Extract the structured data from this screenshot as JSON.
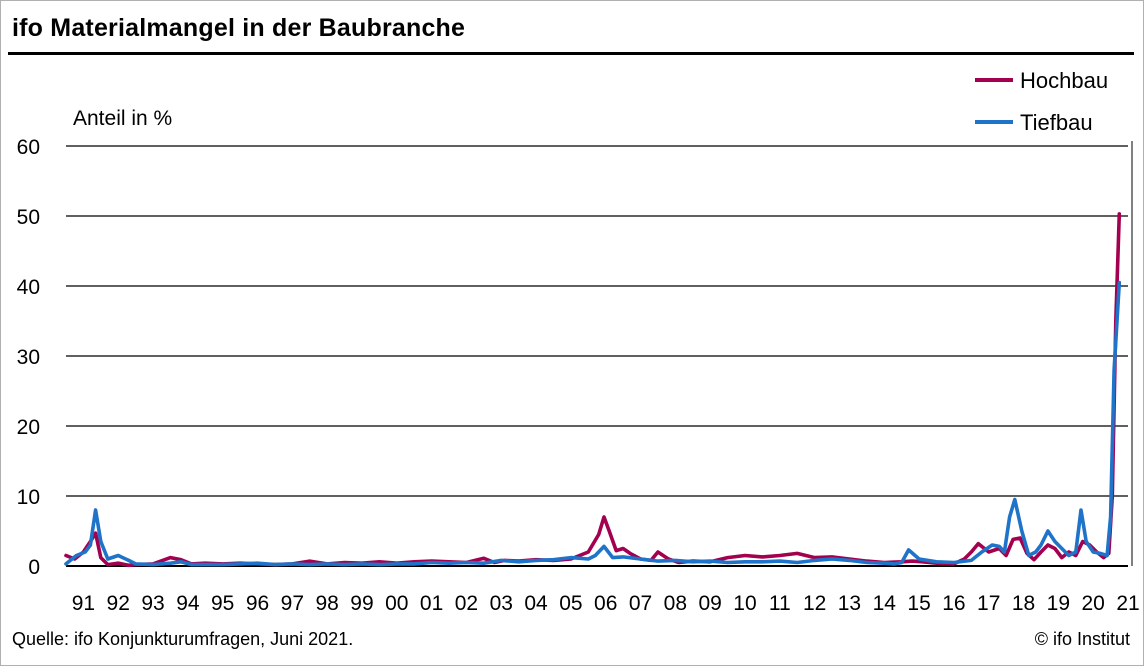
{
  "header": {
    "title": "ifo Materialmangel in der Baubranche"
  },
  "footer": {
    "source": "Quelle: ifo Konjunkturumfragen, Juni 2021.",
    "copyright": "© ifo Institut"
  },
  "chart_data": {
    "type": "line",
    "title": "ifo Materialmangel in der Baubranche",
    "ylabel": "Anteil in %",
    "xlabel": "",
    "ylim": [
      0,
      60
    ],
    "xlim": [
      1991.0,
      2021.5
    ],
    "yticks": [
      0,
      10,
      20,
      30,
      40,
      50,
      60
    ],
    "xtick_labels": [
      "91",
      "92",
      "93",
      "94",
      "95",
      "96",
      "97",
      "98",
      "99",
      "00",
      "01",
      "02",
      "03",
      "04",
      "05",
      "06",
      "07",
      "08",
      "09",
      "10",
      "11",
      "12",
      "13",
      "14",
      "15",
      "16",
      "17",
      "18",
      "19",
      "20",
      "21"
    ],
    "grid": true,
    "legend_position": "top-right",
    "series": [
      {
        "name": "Hochbau",
        "color": "#a3004f",
        "x": [
          1991.0,
          1991.25,
          1991.5,
          1991.7,
          1991.85,
          1992.0,
          1992.2,
          1992.5,
          1992.8,
          1993.0,
          1993.5,
          1994.0,
          1994.3,
          1994.6,
          1995.0,
          1995.5,
          1996.0,
          1996.5,
          1997.0,
          1997.5,
          1998.0,
          1998.5,
          1999.0,
          1999.5,
          2000.0,
          2000.5,
          2001.0,
          2001.5,
          2002.0,
          2002.5,
          2003.0,
          2003.3,
          2003.6,
          2004.0,
          2004.5,
          2005.0,
          2005.5,
          2006.0,
          2006.3,
          2006.45,
          2006.6,
          2006.8,
          2007.0,
          2007.2,
          2007.5,
          2007.8,
          2008.0,
          2008.3,
          2008.6,
          2009.0,
          2009.5,
          2010.0,
          2010.5,
          2011.0,
          2011.5,
          2012.0,
          2012.5,
          2013.0,
          2013.5,
          2014.0,
          2014.5,
          2015.0,
          2015.3,
          2015.6,
          2016.0,
          2016.5,
          2016.8,
          2017.0,
          2017.2,
          2017.5,
          2017.8,
          2018.0,
          2018.2,
          2018.4,
          2018.6,
          2018.8,
          2019.0,
          2019.2,
          2019.4,
          2019.6,
          2019.8,
          2020.0,
          2020.2,
          2020.4,
          2020.6,
          2020.8,
          2020.95,
          2021.05,
          2021.15,
          2021.25
        ],
        "values": [
          1.5,
          1.0,
          2.0,
          3.5,
          4.7,
          1.2,
          0.2,
          0.4,
          0.1,
          0.2,
          0.3,
          1.2,
          0.9,
          0.3,
          0.4,
          0.3,
          0.4,
          0.3,
          0.2,
          0.3,
          0.7,
          0.3,
          0.5,
          0.4,
          0.6,
          0.4,
          0.6,
          0.7,
          0.6,
          0.5,
          1.1,
          0.5,
          0.8,
          0.7,
          0.9,
          0.8,
          1.0,
          2.0,
          4.5,
          7.0,
          5.0,
          2.2,
          2.5,
          1.8,
          1.0,
          0.8,
          2.0,
          1.0,
          0.5,
          0.7,
          0.6,
          1.2,
          1.5,
          1.3,
          1.5,
          1.8,
          1.2,
          1.3,
          1.0,
          0.7,
          0.5,
          0.6,
          0.7,
          0.6,
          0.4,
          0.3,
          1.0,
          2.0,
          3.2,
          2.0,
          2.5,
          1.5,
          3.8,
          4.0,
          1.8,
          0.9,
          2.0,
          3.0,
          2.5,
          1.2,
          2.0,
          1.5,
          3.5,
          3.0,
          2.0,
          1.2,
          1.8,
          10.0,
          35.0,
          50.3
        ]
      },
      {
        "name": "Tiefbau",
        "color": "#1f73c9",
        "x": [
          1991.0,
          1991.3,
          1991.55,
          1991.7,
          1991.85,
          1992.0,
          1992.2,
          1992.5,
          1992.8,
          1993.0,
          1993.5,
          1994.0,
          1994.3,
          1994.6,
          1995.0,
          1995.5,
          1996.0,
          1996.5,
          1997.0,
          1997.5,
          1998.0,
          1998.5,
          1999.0,
          1999.5,
          2000.0,
          2000.5,
          2001.0,
          2001.5,
          2002.0,
          2002.5,
          2003.0,
          2003.5,
          2004.0,
          2004.5,
          2005.0,
          2005.5,
          2006.0,
          2006.2,
          2006.45,
          2006.7,
          2007.0,
          2007.5,
          2008.0,
          2008.5,
          2009.0,
          2009.5,
          2010.0,
          2010.5,
          2011.0,
          2011.5,
          2012.0,
          2012.5,
          2013.0,
          2013.5,
          2014.0,
          2014.5,
          2014.8,
          2015.0,
          2015.2,
          2015.5,
          2016.0,
          2016.5,
          2017.0,
          2017.3,
          2017.6,
          2017.8,
          2017.95,
          2018.1,
          2018.25,
          2018.45,
          2018.65,
          2018.85,
          2019.0,
          2019.2,
          2019.4,
          2019.6,
          2019.8,
          2020.0,
          2020.15,
          2020.3,
          2020.5,
          2020.7,
          2020.9,
          2021.0,
          2021.1,
          2021.25
        ],
        "values": [
          0.3,
          1.5,
          2.0,
          3.0,
          8.0,
          3.5,
          1.0,
          1.5,
          0.8,
          0.3,
          0.2,
          0.4,
          0.6,
          0.2,
          0.2,
          0.2,
          0.3,
          0.4,
          0.2,
          0.3,
          0.2,
          0.3,
          0.2,
          0.3,
          0.2,
          0.3,
          0.3,
          0.5,
          0.4,
          0.5,
          0.4,
          0.8,
          0.6,
          0.8,
          0.9,
          1.2,
          1.0,
          1.5,
          2.8,
          1.2,
          1.3,
          1.0,
          0.7,
          0.8,
          0.6,
          0.7,
          0.5,
          0.6,
          0.6,
          0.7,
          0.5,
          0.8,
          1.0,
          0.8,
          0.5,
          0.4,
          0.3,
          0.5,
          2.3,
          1.0,
          0.6,
          0.5,
          0.8,
          2.0,
          3.0,
          2.8,
          2.0,
          7.0,
          9.5,
          5.0,
          1.5,
          2.0,
          3.0,
          5.0,
          3.5,
          2.5,
          1.5,
          2.0,
          8.0,
          3.5,
          2.0,
          1.8,
          1.5,
          7.0,
          28.0,
          40.5
        ]
      }
    ]
  }
}
